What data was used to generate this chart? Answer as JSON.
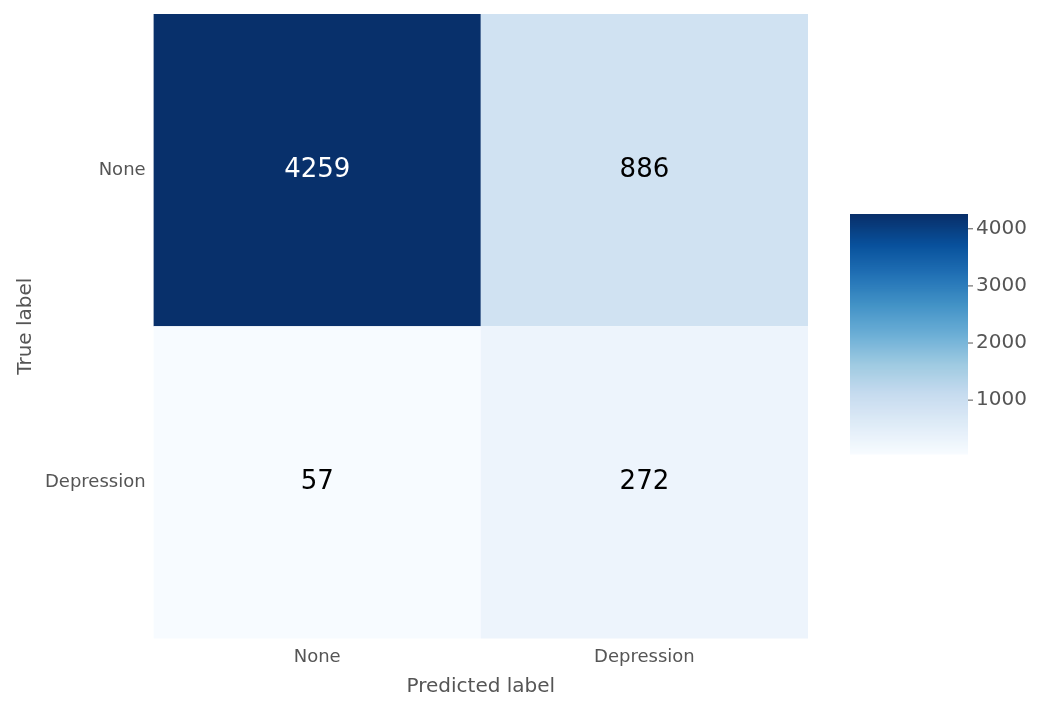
{
  "chart_data": {
    "type": "heatmap",
    "xlabel": "Predicted label",
    "ylabel": "True label",
    "categories": [
      "None",
      "Depression"
    ],
    "y_categories": [
      "None",
      "Depression"
    ],
    "cells": [
      [
        4259,
        886
      ],
      [
        57,
        272
      ]
    ],
    "data_labels": true,
    "clim": [
      57,
      4259
    ],
    "cticks": [
      1000,
      2000,
      3000,
      4000
    ]
  }
}
